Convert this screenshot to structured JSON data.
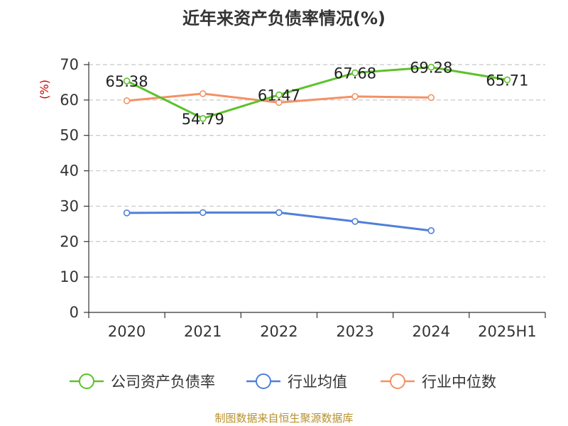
{
  "chart_data": {
    "type": "line",
    "title": "近年来资产负债率情况(%)",
    "ylabel": "(%)",
    "ylim": [
      0,
      70
    ],
    "yticks": [
      0,
      10,
      20,
      30,
      40,
      50,
      60,
      70
    ],
    "categories": [
      "2020",
      "2021",
      "2022",
      "2023",
      "2024",
      "2025H1"
    ],
    "grid": true,
    "legend_position": "bottom",
    "series": [
      {
        "name": "公司资产负债率",
        "color": "#5cc22b",
        "values": [
          65.38,
          54.79,
          61.47,
          67.68,
          69.28,
          65.71
        ],
        "labels": [
          "65.38",
          "54.79",
          "61.47",
          "67.68",
          "69.28",
          "65.71"
        ]
      },
      {
        "name": "行业均值",
        "color": "#4f7fd8",
        "values": [
          28.1,
          28.2,
          28.2,
          25.7,
          23.1,
          null
        ]
      },
      {
        "name": "行业中位数",
        "color": "#f39164",
        "values": [
          59.8,
          61.8,
          59.3,
          61.0,
          60.7,
          null
        ]
      }
    ]
  },
  "footer": {
    "source": "制图数据来自恒生聚源数据库"
  }
}
